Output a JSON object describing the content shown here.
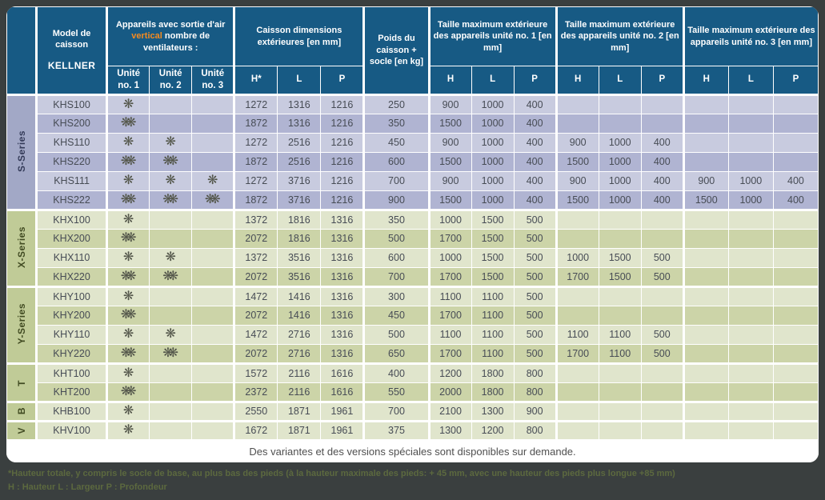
{
  "header": {
    "model_title": "Model de caisson",
    "brand": "KELLNER",
    "fans_title_pre": "Appareils avec sortie d'air",
    "fans_title_highlight": "vertical",
    "fans_title_post": "nombre de ventilateurs :",
    "dims_title": "Caisson dimensions extérieures [en mm]",
    "weight_title": "Poids du caisson + socle [en kg]",
    "unit1_title": "Taille maximum extérieure des appareils unité no. 1 [en mm]",
    "unit2_title": "Taille maximum extérieure des appareils unité no. 2 [en mm]",
    "unit3_title": "Taille maximum extérieure des appareils unité no. 3 [en mm]",
    "sub": {
      "unit1": "Unité no. 1",
      "unit2": "Unité no. 2",
      "unit3": "Unité no. 3",
      "hstar": "H*",
      "h": "H",
      "l": "L",
      "p": "P"
    }
  },
  "series": [
    {
      "label": "S-Series",
      "theme": "s",
      "rows": [
        {
          "model": "KHS100",
          "fans": [
            1,
            0,
            0
          ],
          "caisson": [
            1272,
            1316,
            1216
          ],
          "poids": 250,
          "unit1": [
            900,
            1000,
            400
          ],
          "unit2": [],
          "unit3": []
        },
        {
          "model": "KHS200",
          "fans": [
            2,
            0,
            0
          ],
          "caisson": [
            1872,
            1316,
            1216
          ],
          "poids": 350,
          "unit1": [
            1500,
            1000,
            400
          ],
          "unit2": [],
          "unit3": []
        },
        {
          "model": "KHS110",
          "fans": [
            1,
            1,
            0
          ],
          "caisson": [
            1272,
            2516,
            1216
          ],
          "poids": 450,
          "unit1": [
            900,
            1000,
            400
          ],
          "unit2": [
            900,
            1000,
            400
          ],
          "unit3": []
        },
        {
          "model": "KHS220",
          "fans": [
            2,
            2,
            0
          ],
          "caisson": [
            1872,
            2516,
            1216
          ],
          "poids": 600,
          "unit1": [
            1500,
            1000,
            400
          ],
          "unit2": [
            1500,
            1000,
            400
          ],
          "unit3": []
        },
        {
          "model": "KHS111",
          "fans": [
            1,
            1,
            1
          ],
          "caisson": [
            1272,
            3716,
            1216
          ],
          "poids": 700,
          "unit1": [
            900,
            1000,
            400
          ],
          "unit2": [
            900,
            1000,
            400
          ],
          "unit3": [
            900,
            1000,
            400
          ]
        },
        {
          "model": "KHS222",
          "fans": [
            2,
            2,
            2
          ],
          "caisson": [
            1872,
            3716,
            1216
          ],
          "poids": 900,
          "unit1": [
            1500,
            1000,
            400
          ],
          "unit2": [
            1500,
            1000,
            400
          ],
          "unit3": [
            1500,
            1000,
            400
          ]
        }
      ]
    },
    {
      "label": "X-Series",
      "theme": "g",
      "rows": [
        {
          "model": "KHX100",
          "fans": [
            1,
            0,
            0
          ],
          "caisson": [
            1372,
            1816,
            1316
          ],
          "poids": 350,
          "unit1": [
            1000,
            1500,
            500
          ],
          "unit2": [],
          "unit3": []
        },
        {
          "model": "KHX200",
          "fans": [
            2,
            0,
            0
          ],
          "caisson": [
            2072,
            1816,
            1316
          ],
          "poids": 500,
          "unit1": [
            1700,
            1500,
            500
          ],
          "unit2": [],
          "unit3": []
        },
        {
          "model": "KHX110",
          "fans": [
            1,
            1,
            0
          ],
          "caisson": [
            1372,
            3516,
            1316
          ],
          "poids": 600,
          "unit1": [
            1000,
            1500,
            500
          ],
          "unit2": [
            1000,
            1500,
            500
          ],
          "unit3": []
        },
        {
          "model": "KHX220",
          "fans": [
            2,
            2,
            0
          ],
          "caisson": [
            2072,
            3516,
            1316
          ],
          "poids": 700,
          "unit1": [
            1700,
            1500,
            500
          ],
          "unit2": [
            1700,
            1500,
            500
          ],
          "unit3": []
        }
      ]
    },
    {
      "label": "Y-Series",
      "theme": "g",
      "rows": [
        {
          "model": "KHY100",
          "fans": [
            1,
            0,
            0
          ],
          "caisson": [
            1472,
            1416,
            1316
          ],
          "poids": 300,
          "unit1": [
            1100,
            1100,
            500
          ],
          "unit2": [],
          "unit3": []
        },
        {
          "model": "KHY200",
          "fans": [
            2,
            0,
            0
          ],
          "caisson": [
            2072,
            1416,
            1316
          ],
          "poids": 450,
          "unit1": [
            1700,
            1100,
            500
          ],
          "unit2": [],
          "unit3": []
        },
        {
          "model": "KHY110",
          "fans": [
            1,
            1,
            0
          ],
          "caisson": [
            1472,
            2716,
            1316
          ],
          "poids": 500,
          "unit1": [
            1100,
            1100,
            500
          ],
          "unit2": [
            1100,
            1100,
            500
          ],
          "unit3": []
        },
        {
          "model": "KHY220",
          "fans": [
            2,
            2,
            0
          ],
          "caisson": [
            2072,
            2716,
            1316
          ],
          "poids": 650,
          "unit1": [
            1700,
            1100,
            500
          ],
          "unit2": [
            1700,
            1100,
            500
          ],
          "unit3": []
        }
      ]
    },
    {
      "label": "T",
      "theme": "g",
      "rows": [
        {
          "model": "KHT100",
          "fans": [
            1,
            0,
            0
          ],
          "caisson": [
            1572,
            2116,
            1616
          ],
          "poids": 400,
          "unit1": [
            1200,
            1800,
            800
          ],
          "unit2": [],
          "unit3": []
        },
        {
          "model": "KHT200",
          "fans": [
            2,
            0,
            0
          ],
          "caisson": [
            2372,
            2116,
            1616
          ],
          "poids": 550,
          "unit1": [
            2000,
            1800,
            800
          ],
          "unit2": [],
          "unit3": []
        }
      ]
    },
    {
      "label": "B",
      "theme": "g",
      "rows": [
        {
          "model": "KHB100",
          "fans": [
            1,
            0,
            0
          ],
          "caisson": [
            2550,
            1871,
            1961
          ],
          "poids": 700,
          "unit1": [
            2100,
            1300,
            900
          ],
          "unit2": [],
          "unit3": []
        }
      ]
    },
    {
      "label": "V",
      "theme": "g",
      "rows": [
        {
          "model": "KHV100",
          "fans": [
            1,
            0,
            0
          ],
          "caisson": [
            1672,
            1871,
            1961
          ],
          "poids": 375,
          "unit1": [
            1300,
            1200,
            800
          ],
          "unit2": [],
          "unit3": []
        }
      ]
    }
  ],
  "footer_note": "Des variantes et des versions spéciales sont disponibles sur demande.",
  "footnotes": {
    "line1": "*Hauteur totale, y compris le socle de base, au plus bas des pieds (à la hauteur maximale des pieds: + 45 mm, avec une hauteur des pieds plus longue +85 mm)",
    "line2": "H : Hauteur  L : Largeur  P : Profondeur"
  },
  "icons": {
    "fan_glyph": "❋",
    "fan_name": "fan-icon"
  },
  "colors": {
    "background": "#3a3f3f",
    "header_blue": "#175a84",
    "accent_orange": "#f68b1f",
    "s_row_light": "#c8cbdf",
    "s_row_dark": "#b0b4d2",
    "s_label": "#a2a8c6",
    "green_row_light": "#e0e5cc",
    "green_row_dark": "#ccd4a8",
    "green_label": "#c0cb97"
  }
}
